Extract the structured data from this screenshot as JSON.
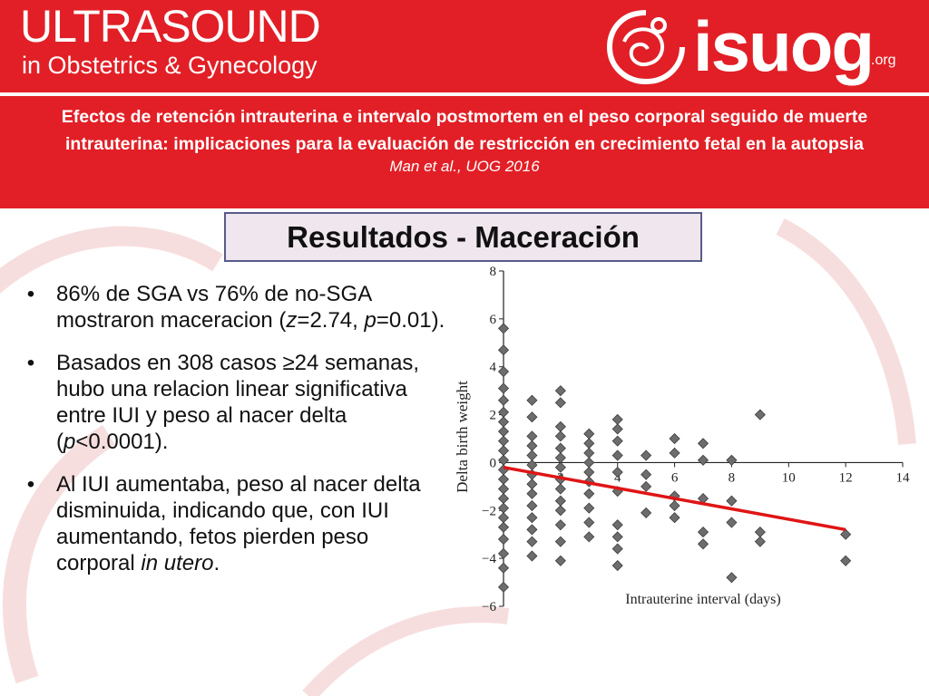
{
  "header": {
    "journal_title": "ULTRASOUND",
    "journal_subtitle": "in Obstetrics & Gynecology",
    "logo_text": "isuog",
    "logo_suffix": ".org"
  },
  "study": {
    "title": "Efectos de retención intrauterina e intervalo postmortem en el peso corporal seguido de muerte intrauterina: implicaciones para la evaluación de restricción en crecimiento fetal en la autopsia",
    "citation": "Man et al., UOG 2016"
  },
  "section_title": "Resultados - Maceración",
  "bullets": [
    {
      "glyph": "•",
      "t1": "86% de SGA vs 76% de no-SGA mostraron maceracion (",
      "i1": "z",
      "t2": "=2.74, ",
      "i2": "p",
      "t3": "=0.01)."
    },
    {
      "glyph": "•",
      "t1": "Basados en 308 casos ≥24 semanas, hubo una relacion linear significativa entre IUI y peso al nacer delta (",
      "i1": "p",
      "t2": "<0.0001)."
    },
    {
      "glyph": "•",
      "t1": "Al IUI aumentaba, peso al nacer delta disminuida, indicando que, con IUI aumentando, fetos pierden peso corporal ",
      "i1": "in utero",
      "t2": "."
    }
  ],
  "colors": {
    "brand_red": "#e21f26",
    "marker": "#6d6d6d",
    "trend_line": "#e01515"
  },
  "chart_data": {
    "type": "scatter",
    "xlabel": "Intrauterine interval (days)",
    "ylabel": "Delta birth weight",
    "xlim": [
      0,
      14
    ],
    "ylim": [
      -6,
      8
    ],
    "x_ticks": [
      {
        "v": 2,
        "label": "2"
      },
      {
        "v": 4,
        "label": "4"
      },
      {
        "v": 6,
        "label": "6"
      },
      {
        "v": 8,
        "label": "8"
      },
      {
        "v": 10,
        "label": "10"
      },
      {
        "v": 12,
        "label": "12"
      },
      {
        "v": 14,
        "label": "14"
      }
    ],
    "y_ticks": [
      {
        "v": 8,
        "label": "8"
      },
      {
        "v": 6,
        "label": "6"
      },
      {
        "v": 4,
        "label": "4"
      },
      {
        "v": 2,
        "label": "2"
      },
      {
        "v": 0,
        "label": "0"
      },
      {
        "v": -2,
        "label": "−2"
      },
      {
        "v": -4,
        "label": "−4"
      },
      {
        "v": -6,
        "label": "−6"
      }
    ],
    "grid": false,
    "points": [
      [
        0,
        5.6
      ],
      [
        0,
        4.7
      ],
      [
        0,
        3.8
      ],
      [
        0,
        3.1
      ],
      [
        0,
        2.6
      ],
      [
        0,
        2.1
      ],
      [
        0,
        1.7
      ],
      [
        0,
        1.3
      ],
      [
        0,
        0.9
      ],
      [
        0,
        0.5
      ],
      [
        0,
        0.1
      ],
      [
        0,
        -0.3
      ],
      [
        0,
        -0.7
      ],
      [
        0,
        -1.1
      ],
      [
        0,
        -1.5
      ],
      [
        0,
        -1.9
      ],
      [
        0,
        -2.3
      ],
      [
        0,
        -2.7
      ],
      [
        0,
        -3.2
      ],
      [
        0,
        -3.8
      ],
      [
        0,
        -4.4
      ],
      [
        0,
        -5.2
      ],
      [
        1,
        2.6
      ],
      [
        1,
        1.9
      ],
      [
        1,
        1.1
      ],
      [
        1,
        0.7
      ],
      [
        1,
        0.3
      ],
      [
        1,
        -0.1
      ],
      [
        1,
        -0.5
      ],
      [
        1,
        -0.9
      ],
      [
        1,
        -1.3
      ],
      [
        1,
        -1.8
      ],
      [
        1,
        -2.3
      ],
      [
        1,
        -2.8
      ],
      [
        1,
        -3.3
      ],
      [
        1,
        -3.9
      ],
      [
        2,
        3.0
      ],
      [
        2,
        2.5
      ],
      [
        2,
        1.5
      ],
      [
        2,
        1.1
      ],
      [
        2,
        0.6
      ],
      [
        2,
        0.2
      ],
      [
        2,
        -0.2
      ],
      [
        2,
        -0.7
      ],
      [
        2,
        -1.1
      ],
      [
        2,
        -1.6
      ],
      [
        2,
        -2.0
      ],
      [
        2,
        -2.6
      ],
      [
        2,
        -3.3
      ],
      [
        2,
        -4.1
      ],
      [
        3,
        1.2
      ],
      [
        3,
        0.8
      ],
      [
        3,
        0.4
      ],
      [
        3,
        0.0
      ],
      [
        3,
        -0.4
      ],
      [
        3,
        -0.8
      ],
      [
        3,
        -1.3
      ],
      [
        3,
        -1.9
      ],
      [
        3,
        -2.5
      ],
      [
        3,
        -3.1
      ],
      [
        4,
        1.8
      ],
      [
        4,
        1.4
      ],
      [
        4,
        0.9
      ],
      [
        4,
        0.3
      ],
      [
        4,
        -0.4
      ],
      [
        4,
        -1.2
      ],
      [
        4,
        -2.6
      ],
      [
        4,
        -3.1
      ],
      [
        4,
        -3.6
      ],
      [
        4,
        -4.3
      ],
      [
        5,
        0.3
      ],
      [
        5,
        -0.5
      ],
      [
        5,
        -1.0
      ],
      [
        5,
        -2.1
      ],
      [
        6,
        1.0
      ],
      [
        6,
        0.4
      ],
      [
        6,
        -1.4
      ],
      [
        6,
        -1.8
      ],
      [
        6,
        -2.3
      ],
      [
        7,
        0.8
      ],
      [
        7,
        0.1
      ],
      [
        7,
        -1.5
      ],
      [
        7,
        -2.9
      ],
      [
        7,
        -3.4
      ],
      [
        8,
        0.1
      ],
      [
        8,
        -1.6
      ],
      [
        8,
        -2.5
      ],
      [
        8,
        -4.8
      ],
      [
        9,
        2.0
      ],
      [
        9,
        -2.9
      ],
      [
        9,
        -3.3
      ],
      [
        12,
        -3.0
      ],
      [
        12,
        -4.1
      ]
    ],
    "trend_line": {
      "x": [
        0,
        12
      ],
      "y": [
        -0.2,
        -2.8
      ]
    }
  }
}
